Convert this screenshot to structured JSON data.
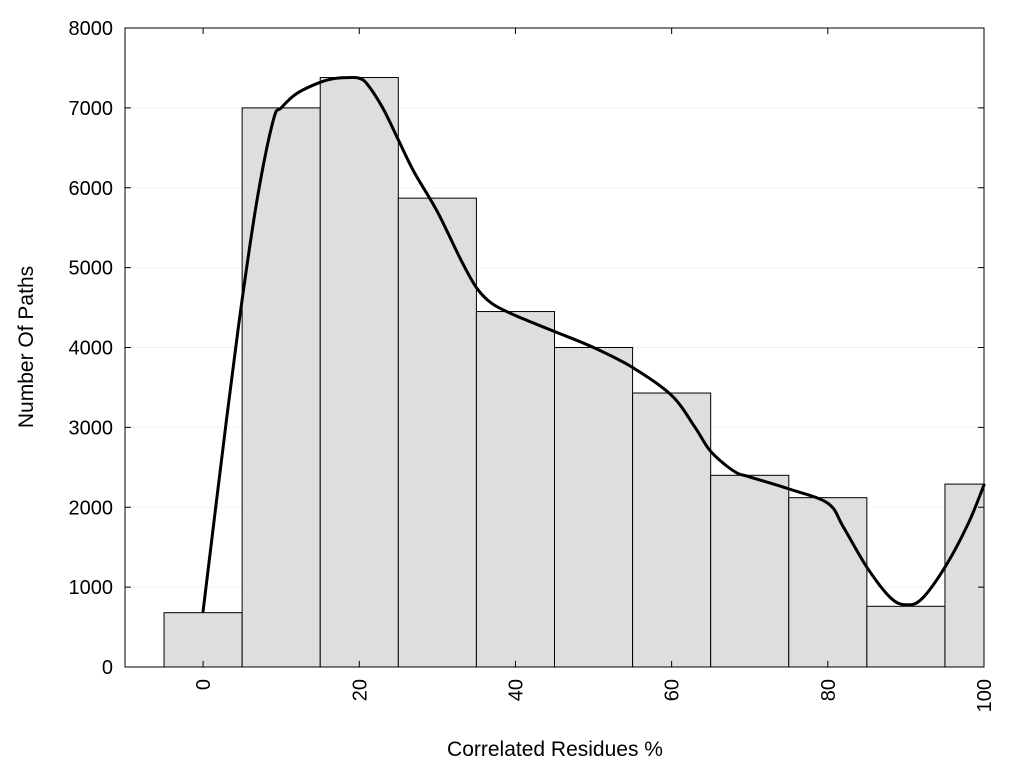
{
  "chart_data": {
    "type": "bar",
    "title": "",
    "xlabel": "Correlated Residues %",
    "ylabel": "Number Of Paths",
    "x": [
      0,
      10,
      20,
      30,
      40,
      50,
      60,
      70,
      80,
      90,
      100
    ],
    "values": [
      680,
      7000,
      7380,
      5870,
      4450,
      4000,
      3430,
      2400,
      2120,
      760,
      2290
    ],
    "bar_width": 10,
    "xlim": [
      -10,
      100
    ],
    "ylim": [
      0,
      8000
    ],
    "x_ticks": [
      0,
      20,
      40,
      60,
      80,
      100
    ],
    "x_tick_labels": [
      "0",
      "20",
      "40",
      "60",
      "80",
      "100"
    ],
    "y_ticks": [
      0,
      1000,
      2000,
      3000,
      4000,
      5000,
      6000,
      7000,
      8000
    ],
    "y_tick_labels": [
      "0",
      "1000",
      "2000",
      "3000",
      "4000",
      "5000",
      "6000",
      "7000",
      "8000"
    ],
    "grid": true,
    "legend": "none",
    "trend_line": {
      "x": [
        0,
        3,
        5,
        7,
        9,
        10,
        12,
        15,
        17,
        19,
        20,
        21,
        23,
        25,
        27,
        30,
        33,
        35,
        37,
        40,
        45,
        50,
        55,
        60,
        63,
        65,
        68,
        70,
        75,
        80,
        82,
        85,
        88,
        90,
        92,
        95,
        98,
        100
      ],
      "y": [
        700,
        3100,
        4600,
        5900,
        6850,
        7000,
        7180,
        7320,
        7370,
        7380,
        7370,
        7300,
        7000,
        6600,
        6200,
        5700,
        5100,
        4750,
        4550,
        4400,
        4200,
        4000,
        3750,
        3400,
        3000,
        2700,
        2450,
        2380,
        2230,
        2050,
        1750,
        1250,
        870,
        780,
        850,
        1250,
        1800,
        2280
      ]
    },
    "colors": {
      "bar_fill": "#dedede",
      "bar_edge": "#000000",
      "line": "#000000",
      "grid": "#cfcfcf"
    }
  }
}
